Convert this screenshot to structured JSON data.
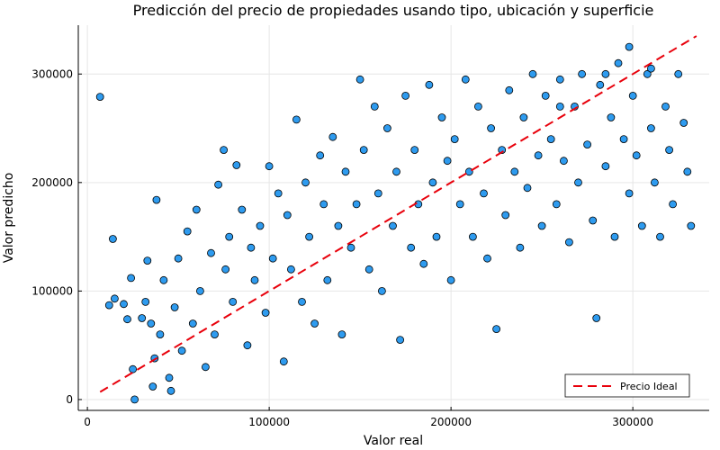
{
  "chart_data": {
    "type": "scatter",
    "title": "Predicción del precio de propiedades usando tipo, ubicación y superficie",
    "xlabel": "Valor real",
    "ylabel": "Valor predicho",
    "xlim": [
      -5000,
      342000
    ],
    "ylim": [
      -10000,
      345000
    ],
    "xticks": [
      0,
      100000,
      200000,
      300000
    ],
    "xtick_labels": [
      "0",
      "100000",
      "200000",
      "300000"
    ],
    "yticks": [
      0,
      100000,
      200000,
      300000
    ],
    "ytick_labels": [
      "0",
      "100000",
      "200000",
      "300000"
    ],
    "grid": true,
    "legend_position": "bottom-right",
    "series": [
      {
        "type": "scatter",
        "color": "#2e9bef",
        "edge_color": "#000000",
        "points": [
          [
            7000,
            279000
          ],
          [
            14000,
            148000
          ],
          [
            12000,
            87000
          ],
          [
            15000,
            93000
          ],
          [
            20000,
            88000
          ],
          [
            22000,
            74000
          ],
          [
            24000,
            112000
          ],
          [
            25000,
            28000
          ],
          [
            26000,
            0
          ],
          [
            30000,
            75000
          ],
          [
            32000,
            90000
          ],
          [
            33000,
            128000
          ],
          [
            35000,
            70000
          ],
          [
            36000,
            12000
          ],
          [
            37000,
            38000
          ],
          [
            38000,
            184000
          ],
          [
            40000,
            60000
          ],
          [
            42000,
            110000
          ],
          [
            45000,
            20000
          ],
          [
            46000,
            8000
          ],
          [
            48000,
            85000
          ],
          [
            50000,
            130000
          ],
          [
            52000,
            45000
          ],
          [
            55000,
            155000
          ],
          [
            58000,
            70000
          ],
          [
            60000,
            175000
          ],
          [
            62000,
            100000
          ],
          [
            65000,
            30000
          ],
          [
            68000,
            135000
          ],
          [
            70000,
            60000
          ],
          [
            72000,
            198000
          ],
          [
            75000,
            230000
          ],
          [
            76000,
            120000
          ],
          [
            78000,
            150000
          ],
          [
            80000,
            90000
          ],
          [
            82000,
            216000
          ],
          [
            85000,
            175000
          ],
          [
            88000,
            50000
          ],
          [
            90000,
            140000
          ],
          [
            92000,
            110000
          ],
          [
            95000,
            160000
          ],
          [
            98000,
            80000
          ],
          [
            100000,
            215000
          ],
          [
            102000,
            130000
          ],
          [
            105000,
            190000
          ],
          [
            108000,
            35000
          ],
          [
            110000,
            170000
          ],
          [
            112000,
            120000
          ],
          [
            115000,
            258000
          ],
          [
            118000,
            90000
          ],
          [
            120000,
            200000
          ],
          [
            122000,
            150000
          ],
          [
            125000,
            70000
          ],
          [
            128000,
            225000
          ],
          [
            130000,
            180000
          ],
          [
            132000,
            110000
          ],
          [
            135000,
            242000
          ],
          [
            138000,
            160000
          ],
          [
            140000,
            60000
          ],
          [
            142000,
            210000
          ],
          [
            145000,
            140000
          ],
          [
            148000,
            180000
          ],
          [
            150000,
            295000
          ],
          [
            152000,
            230000
          ],
          [
            155000,
            120000
          ],
          [
            158000,
            270000
          ],
          [
            160000,
            190000
          ],
          [
            162000,
            100000
          ],
          [
            165000,
            250000
          ],
          [
            168000,
            160000
          ],
          [
            170000,
            210000
          ],
          [
            172000,
            55000
          ],
          [
            175000,
            280000
          ],
          [
            178000,
            140000
          ],
          [
            180000,
            230000
          ],
          [
            182000,
            180000
          ],
          [
            185000,
            125000
          ],
          [
            188000,
            290000
          ],
          [
            190000,
            200000
          ],
          [
            192000,
            150000
          ],
          [
            195000,
            260000
          ],
          [
            198000,
            220000
          ],
          [
            200000,
            110000
          ],
          [
            202000,
            240000
          ],
          [
            205000,
            180000
          ],
          [
            208000,
            295000
          ],
          [
            210000,
            210000
          ],
          [
            212000,
            150000
          ],
          [
            215000,
            270000
          ],
          [
            218000,
            190000
          ],
          [
            220000,
            130000
          ],
          [
            222000,
            250000
          ],
          [
            225000,
            65000
          ],
          [
            228000,
            230000
          ],
          [
            230000,
            170000
          ],
          [
            232000,
            285000
          ],
          [
            235000,
            210000
          ],
          [
            238000,
            140000
          ],
          [
            240000,
            260000
          ],
          [
            242000,
            195000
          ],
          [
            245000,
            300000
          ],
          [
            248000,
            225000
          ],
          [
            250000,
            160000
          ],
          [
            252000,
            280000
          ],
          [
            255000,
            240000
          ],
          [
            258000,
            180000
          ],
          [
            260000,
            295000
          ],
          [
            262000,
            220000
          ],
          [
            265000,
            145000
          ],
          [
            268000,
            270000
          ],
          [
            270000,
            200000
          ],
          [
            272000,
            300000
          ],
          [
            275000,
            235000
          ],
          [
            278000,
            165000
          ],
          [
            280000,
            75000
          ],
          [
            282000,
            290000
          ],
          [
            285000,
            215000
          ],
          [
            288000,
            260000
          ],
          [
            290000,
            150000
          ],
          [
            292000,
            310000
          ],
          [
            295000,
            240000
          ],
          [
            298000,
            190000
          ],
          [
            300000,
            280000
          ],
          [
            302000,
            225000
          ],
          [
            305000,
            160000
          ],
          [
            308000,
            300000
          ],
          [
            310000,
            250000
          ],
          [
            312000,
            200000
          ],
          [
            315000,
            150000
          ],
          [
            318000,
            270000
          ],
          [
            320000,
            230000
          ],
          [
            322000,
            180000
          ],
          [
            325000,
            300000
          ],
          [
            328000,
            255000
          ],
          [
            330000,
            210000
          ],
          [
            332000,
            160000
          ],
          [
            298000,
            325000
          ],
          [
            285000,
            300000
          ],
          [
            310000,
            305000
          ],
          [
            260000,
            270000
          ]
        ]
      },
      {
        "name": "Precio Ideal",
        "type": "line",
        "style": "dashed",
        "color": "#e8000b",
        "x": [
          7000,
          335000
        ],
        "y": [
          7000,
          335000
        ]
      }
    ]
  }
}
